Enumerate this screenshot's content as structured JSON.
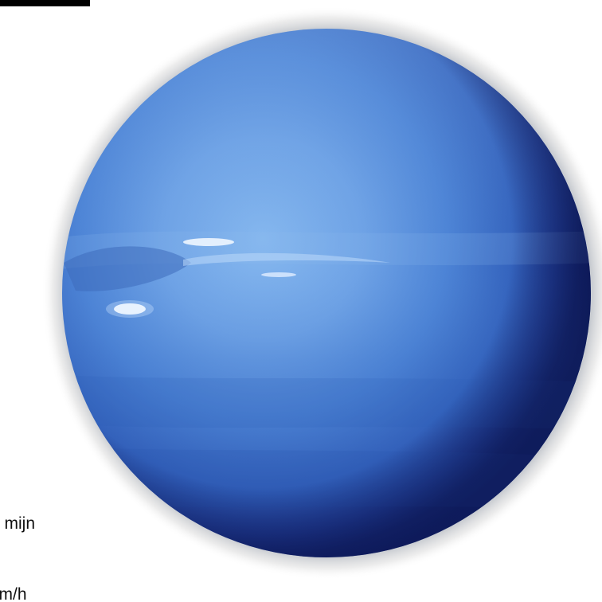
{
  "text_fragments": {
    "line_1": "n mijn",
    "line_2": "km/h"
  },
  "colors": {
    "background": "#ffffff",
    "planet_light": "#7fb0ea",
    "planet_mid": "#4f86d8",
    "planet_dark": "#1b2f8c",
    "planet_edge": "#0c1a5a",
    "halo": "#dcdcdc",
    "top_bar": "#000000"
  },
  "subject": "neptune-planet"
}
